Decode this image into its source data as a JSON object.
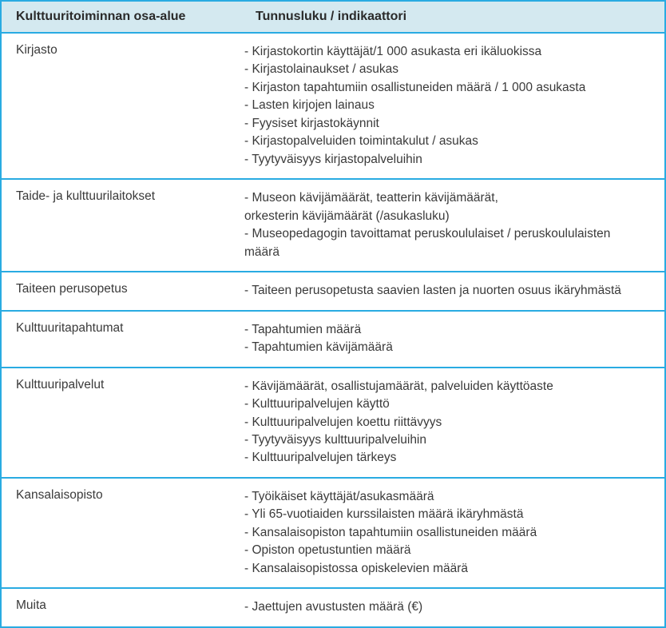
{
  "table": {
    "header_col1": "Kulttuuritoiminnan osa-alue",
    "header_col2": "Tunnusluku / indikaattori",
    "border_color": "#29abe2",
    "header_bg": "#d4e9f0",
    "text_color": "#3a3a3a",
    "header_fontsize": 16,
    "body_fontsize": 15.5,
    "col1_width": 300,
    "rows": [
      {
        "label": "Kirjasto",
        "indicators": [
          "- Kirjastokortin käyttäjät/1 000 asukasta eri ikäluokissa",
          "- Kirjastolainaukset / asukas",
          "- Kirjaston tapahtumiin osallistuneiden määrä / 1 000 asukasta",
          "- Lasten kirjojen lainaus",
          "- Fyysiset kirjastokäynnit",
          "- Kirjastopalveluiden toimintakulut / asukas",
          "- Tyytyväisyys kirjastopalveluihin"
        ]
      },
      {
        "label": "Taide- ja kulttuurilaitokset",
        "indicators": [
          "- Museon kävijämäärät, teatterin kävijämäärät,",
          "orkesterin kävijämäärät (/asukasluku)",
          "- Museopedagogin tavoittamat peruskoululaiset / peruskoululaisten",
          "määrä"
        ]
      },
      {
        "label": "Taiteen perusopetus",
        "indicators": [
          "- Taiteen perusopetusta saavien lasten ja nuorten osuus ikäryhmästä"
        ]
      },
      {
        "label": "Kulttuuritapahtumat",
        "indicators": [
          "- Tapahtumien määrä",
          "- Tapahtumien kävijämäärä"
        ]
      },
      {
        "label": "Kulttuuripalvelut",
        "indicators": [
          "- Kävijämäärät, osallistujamäärät, palveluiden käyttöaste",
          "- Kulttuuripalvelujen käyttö",
          "- Kulttuuripalvelujen koettu riittävyys",
          "- Tyytyväisyys kulttuuripalveluihin",
          "- Kulttuuripalvelujen tärkeys"
        ]
      },
      {
        "label": "Kansalaisopisto",
        "indicators": [
          "- Työikäiset käyttäjät/asukasmäärä",
          "- Yli 65-vuotiaiden kurssilaisten määrä ikäryhmästä",
          "- Kansalaisopiston tapahtumiin osallistuneiden määrä",
          "- Opiston opetustuntien määrä",
          "- Kansalaisopistossa opiskelevien määrä"
        ]
      },
      {
        "label": "Muita",
        "indicators": [
          "- Jaettujen avustusten määrä (€)"
        ]
      }
    ]
  }
}
